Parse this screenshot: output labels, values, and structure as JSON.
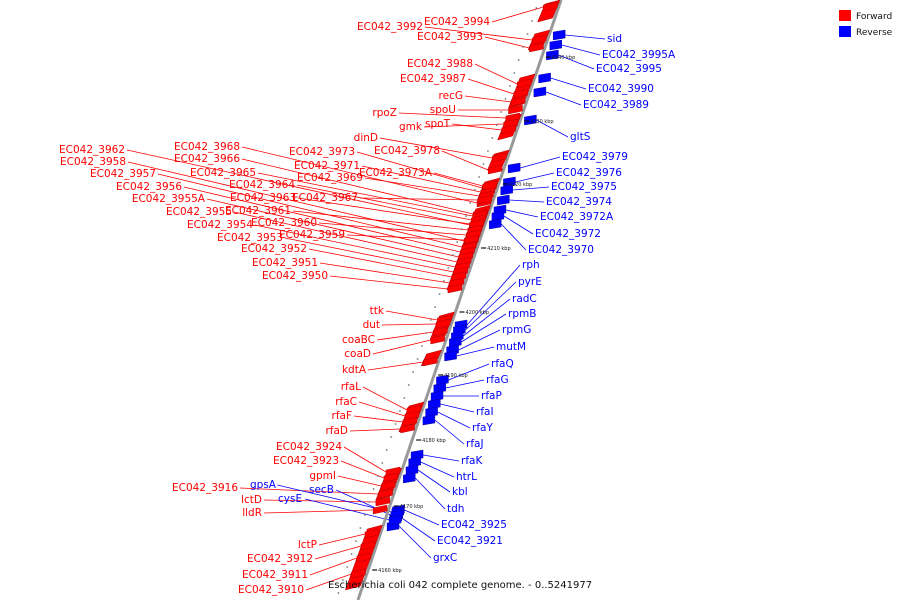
{
  "caption": "Escherichia coli 042 complete genome. - 0..5241977",
  "legend": [
    {
      "label": "Forward",
      "color": "#ff0000"
    },
    {
      "label": "Reverse",
      "color": "#0000ff"
    }
  ],
  "colors": {
    "forward": "#ff0000",
    "reverse": "#0000ff",
    "backbone": "#9a9a9a"
  },
  "ticks": [
    "4240 kbp",
    "4230 kbp",
    "4220 kbp",
    "4210 kbp",
    "4200 kbp",
    "4190 kbp",
    "4180 kbp",
    "4170 kbp",
    "4160 kbp"
  ],
  "forward_genes": [
    "EC042_3994",
    "EC042_3992",
    "EC042_3993",
    "EC042_3988",
    "EC042_3987",
    "recG",
    "spoU",
    "rpoZ",
    "gmk",
    "spoT",
    "dinD",
    "EC042_3968",
    "EC042_3962",
    "EC042_3978",
    "EC042_3973",
    "EC042_3966",
    "EC042_3958",
    "EC042_3971",
    "EC042_3957",
    "EC042_3965",
    "EC042_3969",
    "EC042_3973A",
    "EC042_3956",
    "EC042_3964",
    "EC042_3967",
    "EC042_3955A",
    "EC042_3963",
    "EC042_3955",
    "EC042_3961",
    "EC042_3954",
    "EC042_3960",
    "EC042_3953",
    "EC042_3959",
    "EC042_3952",
    "EC042_3951",
    "EC042_3950",
    "ttk",
    "dut",
    "coaBC",
    "coaD",
    "kdtA",
    "rfaL",
    "rfaC",
    "rfaF",
    "rfaD",
    "EC042_3924",
    "EC042_3923",
    "gpmI",
    "EC042_3916",
    "lctD",
    "lldR",
    "lctP",
    "EC042_3912",
    "EC042_3911",
    "EC042_3910"
  ],
  "reverse_genes": [
    "sid",
    "EC042_3995A",
    "EC042_3995",
    "EC042_3990",
    "EC042_3989",
    "gltS",
    "EC042_3979",
    "EC042_3976",
    "EC042_3975",
    "EC042_3974",
    "EC042_3972A",
    "EC042_3972",
    "EC042_3970",
    "rph",
    "pyrE",
    "radC",
    "rpmB",
    "rpmG",
    "mutM",
    "rfaQ",
    "rfaG",
    "rfaP",
    "rfaI",
    "rfaY",
    "rfaJ",
    "rfaK",
    "htrL",
    "kbl",
    "tdh",
    "EC042_3925",
    "EC042_3921",
    "grxC",
    "gpsA",
    "secB",
    "cysE"
  ]
}
